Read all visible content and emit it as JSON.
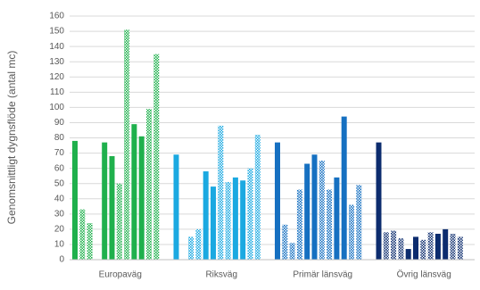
{
  "chart_data": {
    "type": "bar",
    "y_label": "Genomsnittligt dygnsflöde (antal mc)",
    "categories": [
      "Europaväg",
      "Riksväg",
      "Primär länsväg",
      "Övrig länsväg"
    ],
    "category_colors": [
      "#1fb04c",
      "#1ba9e1",
      "#1670c1",
      "#0c2c6e"
    ],
    "series": [
      {
        "pattern": "solid",
        "values": [
          78,
          69,
          77,
          77
        ]
      },
      {
        "pattern": "dotted",
        "values": [
          33,
          null,
          23,
          18
        ]
      },
      {
        "pattern": "dotted",
        "values": [
          24,
          15,
          11,
          19
        ]
      },
      {
        "pattern": "dotted",
        "values": [
          null,
          20,
          46,
          14
        ]
      },
      {
        "pattern": "solid",
        "values": [
          77,
          58,
          63,
          7
        ]
      },
      {
        "pattern": "solid",
        "values": [
          68,
          48,
          69,
          15
        ]
      },
      {
        "pattern": "dotted",
        "values": [
          50,
          88,
          65,
          13
        ]
      },
      {
        "pattern": "dotted",
        "values": [
          151,
          51,
          46,
          18
        ]
      },
      {
        "pattern": "solid",
        "values": [
          89,
          54,
          54,
          17
        ]
      },
      {
        "pattern": "solid",
        "values": [
          81,
          52,
          94,
          20
        ]
      },
      {
        "pattern": "dotted",
        "values": [
          99,
          60,
          36,
          17
        ]
      },
      {
        "pattern": "dotted",
        "values": [
          135,
          82,
          49,
          15
        ]
      }
    ],
    "ylim": [
      0,
      160
    ],
    "yticks": [
      0,
      10,
      20,
      30,
      40,
      50,
      60,
      70,
      80,
      90,
      100,
      110,
      120,
      130,
      140,
      150,
      160
    ],
    "grid": true
  }
}
